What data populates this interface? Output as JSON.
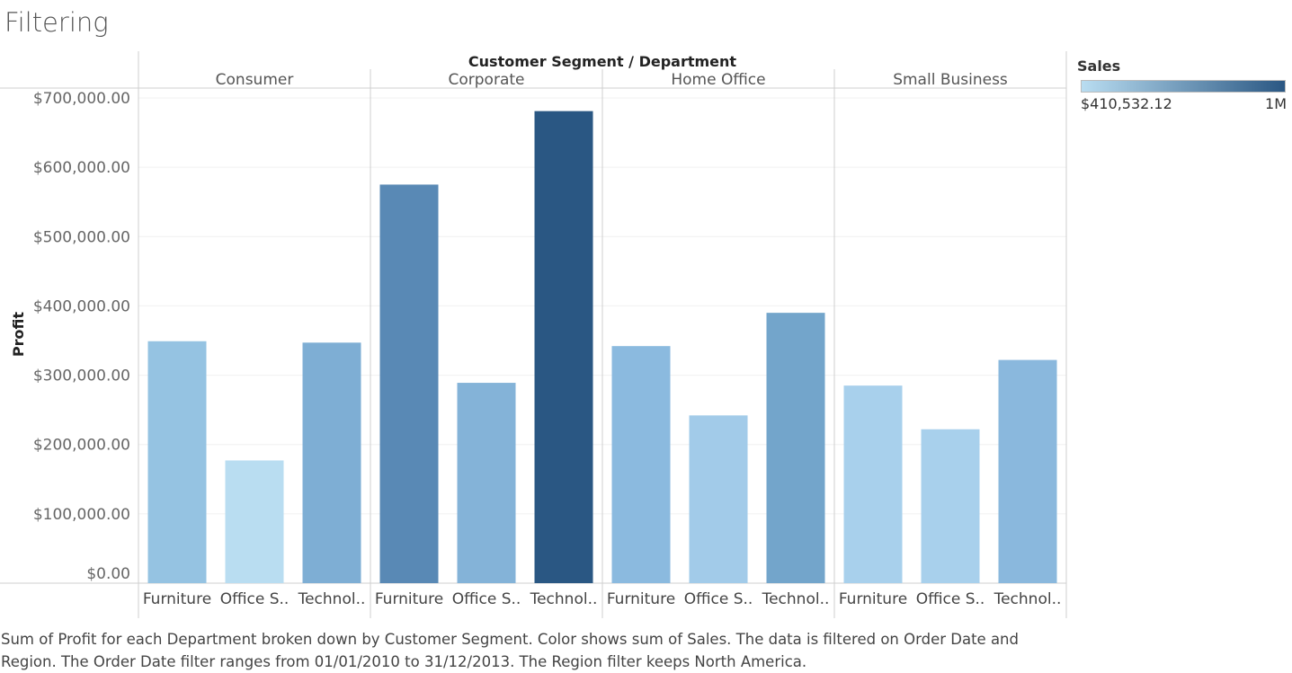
{
  "page": {
    "title": "Filtering",
    "caption": "Sum of Profit for each Department broken down by Customer Segment.  Color shows sum of Sales. The data is filtered on Order Date and Region. The Order Date filter ranges from 01/01/2010 to 31/12/2013. The Region filter keeps North America."
  },
  "legend": {
    "title": "Sales",
    "min_label": "$410,532.12",
    "max_label": "1M",
    "color_low": "#b9ddf1",
    "color_high": "#2a5783"
  },
  "chart_data": {
    "type": "bar",
    "column_header": "Customer Segment / Department",
    "ylabel": "Profit",
    "ylim": [
      0,
      700000
    ],
    "yticks": [
      {
        "value": 0,
        "label": "$0.00"
      },
      {
        "value": 100000,
        "label": "$100,000.00"
      },
      {
        "value": 200000,
        "label": "$200,000.00"
      },
      {
        "value": 300000,
        "label": "$300,000.00"
      },
      {
        "value": 400000,
        "label": "$400,000.00"
      },
      {
        "value": 500000,
        "label": "$500,000.00"
      },
      {
        "value": 600000,
        "label": "$600,000.00"
      },
      {
        "value": 700000,
        "label": "$700,000.00"
      }
    ],
    "grid": true,
    "color_by": "Sales",
    "segments": [
      {
        "name": "Consumer",
        "bars": [
          {
            "category": "Furniture",
            "label": "Furniture",
            "value": 349000,
            "color": "#95c3e2"
          },
          {
            "category": "Office Supplies",
            "label": "Office S..",
            "value": 177000,
            "color": "#b9ddf1"
          },
          {
            "category": "Technology",
            "label": "Technol..",
            "value": 347000,
            "color": "#7eaed4"
          }
        ]
      },
      {
        "name": "Corporate",
        "bars": [
          {
            "category": "Furniture",
            "label": "Furniture",
            "value": 575000,
            "color": "#5989b5"
          },
          {
            "category": "Office Supplies",
            "label": "Office S..",
            "value": 289000,
            "color": "#84b3d8"
          },
          {
            "category": "Technology",
            "label": "Technol..",
            "value": 681000,
            "color": "#2a5783"
          }
        ]
      },
      {
        "name": "Home Office",
        "bars": [
          {
            "category": "Furniture",
            "label": "Furniture",
            "value": 342000,
            "color": "#8bbadf"
          },
          {
            "category": "Office Supplies",
            "label": "Office S..",
            "value": 242000,
            "color": "#a2cbe9"
          },
          {
            "category": "Technology",
            "label": "Technol..",
            "value": 390000,
            "color": "#73a5cb"
          }
        ]
      },
      {
        "name": "Small Business",
        "bars": [
          {
            "category": "Furniture",
            "label": "Furniture",
            "value": 285000,
            "color": "#a8d0ec"
          },
          {
            "category": "Office Supplies",
            "label": "Office S..",
            "value": 222000,
            "color": "#a8d0ec"
          },
          {
            "category": "Technology",
            "label": "Technol..",
            "value": 322000,
            "color": "#8ab8dd"
          }
        ]
      }
    ]
  }
}
